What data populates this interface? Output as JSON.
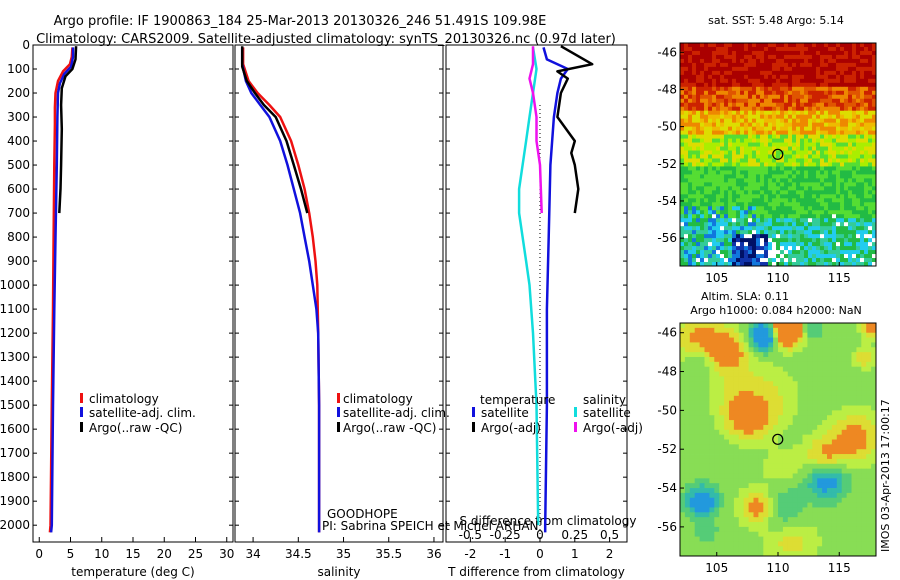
{
  "header": {
    "line1": "Argo profile: IF 1900863_184 25-Mar-2013 20130326_246 51.491S 109.98E",
    "line2": "Climatology: CARS2009. Satellite-adjusted climatology: synTS_20130326.nc (0.97d later)"
  },
  "colors": {
    "climatology": "#ee1111",
    "satellite": "#1111dd",
    "argo": "#000000",
    "sal_satellite": "#11dddd",
    "sal_argo": "#ee11ee"
  },
  "chart_data": [
    {
      "type": "line",
      "panel": "temperature",
      "xlabel": "temperature (deg C)",
      "ylabel": "",
      "xlim": [
        -1,
        31
      ],
      "ylim": [
        2070,
        0
      ],
      "xticks": [
        0,
        5,
        10,
        15,
        20,
        25,
        30
      ],
      "yticks": [
        0,
        100,
        200,
        300,
        400,
        500,
        600,
        700,
        800,
        900,
        1000,
        1100,
        1200,
        1300,
        1400,
        1500,
        1600,
        1700,
        1800,
        1900,
        2000
      ],
      "legend": [
        "climatology",
        "satellite-adj. clim.",
        "Argo(..raw -QC)"
      ],
      "series": [
        {
          "name": "climatology",
          "color": "#ee1111",
          "points": [
            [
              5.3,
              10
            ],
            [
              5.2,
              50
            ],
            [
              4.9,
              80
            ],
            [
              3.8,
              110
            ],
            [
              3.0,
              150
            ],
            [
              2.6,
              200
            ],
            [
              2.5,
              260
            ],
            [
              2.5,
              330
            ],
            [
              2.4,
              500
            ],
            [
              2.3,
              800
            ],
            [
              2.2,
              1100
            ],
            [
              2.0,
              1500
            ],
            [
              1.8,
              2000
            ],
            [
              1.7,
              2030
            ]
          ]
        },
        {
          "name": "satellite-adj. clim.",
          "color": "#1111dd",
          "points": [
            [
              5.4,
              10
            ],
            [
              5.4,
              50
            ],
            [
              5.1,
              90
            ],
            [
              4.0,
              120
            ],
            [
              3.3,
              160
            ],
            [
              3.0,
              200
            ],
            [
              2.9,
              300
            ],
            [
              2.8,
              500
            ],
            [
              2.6,
              800
            ],
            [
              2.4,
              1100
            ],
            [
              2.2,
              1500
            ],
            [
              2.0,
              2000
            ],
            [
              1.9,
              2030
            ]
          ]
        },
        {
          "name": "Argo(..raw -QC)",
          "color": "#000000",
          "points": [
            [
              5.9,
              5
            ],
            [
              5.8,
              60
            ],
            [
              5.3,
              100
            ],
            [
              4.2,
              130
            ],
            [
              3.6,
              180
            ],
            [
              3.5,
              250
            ],
            [
              3.6,
              350
            ],
            [
              3.5,
              500
            ],
            [
              3.4,
              600
            ],
            [
              3.2,
              700
            ]
          ]
        }
      ]
    },
    {
      "type": "line",
      "panel": "salinity",
      "xlabel": "salinity",
      "ylabel": "",
      "xlim": [
        33.8,
        36.1
      ],
      "ylim": [
        2070,
        0
      ],
      "xticks": [
        34,
        34.5,
        35,
        35.5,
        36
      ],
      "xticklabels": [
        "34",
        "34.5",
        "35",
        "35.5",
        "36"
      ],
      "legend": [
        "climatology",
        "satellite-adj. clim.",
        "Argo(..raw -QC)"
      ],
      "annotation": [
        "GOODHOPE",
        "PI: Sabrina SPEICH et Michel ARHAN"
      ],
      "series": [
        {
          "name": "climatology",
          "color": "#ee1111",
          "points": [
            [
              33.89,
              10
            ],
            [
              33.89,
              80
            ],
            [
              33.95,
              150
            ],
            [
              34.05,
              200
            ],
            [
              34.18,
              250
            ],
            [
              34.3,
              300
            ],
            [
              34.42,
              400
            ],
            [
              34.5,
              500
            ],
            [
              34.57,
              600
            ],
            [
              34.62,
              700
            ],
            [
              34.66,
              800
            ],
            [
              34.69,
              900
            ],
            [
              34.71,
              1000
            ],
            [
              34.72,
              1200
            ],
            [
              34.73,
              1500
            ],
            [
              34.73,
              2000
            ],
            [
              34.73,
              2030
            ]
          ]
        },
        {
          "name": "satellite-adj. clim.",
          "color": "#1111dd",
          "points": [
            [
              33.88,
              10
            ],
            [
              33.88,
              80
            ],
            [
              33.92,
              150
            ],
            [
              33.98,
              200
            ],
            [
              34.08,
              250
            ],
            [
              34.18,
              300
            ],
            [
              34.3,
              400
            ],
            [
              34.38,
              500
            ],
            [
              34.45,
              600
            ],
            [
              34.52,
              700
            ],
            [
              34.57,
              800
            ],
            [
              34.62,
              900
            ],
            [
              34.66,
              1000
            ],
            [
              34.7,
              1100
            ],
            [
              34.72,
              1200
            ],
            [
              34.73,
              1500
            ],
            [
              34.73,
              2000
            ],
            [
              34.73,
              2030
            ]
          ]
        },
        {
          "name": "Argo(..raw -QC)",
          "color": "#000000",
          "points": [
            [
              33.88,
              5
            ],
            [
              33.88,
              90
            ],
            [
              33.93,
              150
            ],
            [
              34.02,
              200
            ],
            [
              34.12,
              250
            ],
            [
              34.25,
              300
            ],
            [
              34.37,
              400
            ],
            [
              34.45,
              500
            ],
            [
              34.53,
              600
            ],
            [
              34.6,
              700
            ]
          ]
        }
      ]
    },
    {
      "type": "line",
      "panel": "difference",
      "xlabel": "T difference from climatology",
      "xlabel_top": "S difference from climatology",
      "xlim": [
        -2.7,
        2.5
      ],
      "ylim": [
        2070,
        0
      ],
      "xticks": [
        -2,
        -1,
        0,
        1,
        2
      ],
      "xticks_top": [
        "-0.5",
        "-0.25",
        "0",
        "0.25",
        "0.5"
      ],
      "legend_groups": [
        {
          "title": "temperature",
          "items": [
            "satellite",
            "Argo(-adj)"
          ]
        },
        {
          "title": "salinity",
          "items": [
            "satellite",
            "Argo(-adj)"
          ]
        }
      ],
      "series": [
        {
          "name": "temperature satellite",
          "color": "#1111dd",
          "points": [
            [
              0.1,
              10
            ],
            [
              0.2,
              60
            ],
            [
              0.8,
              100
            ],
            [
              0.6,
              140
            ],
            [
              0.5,
              200
            ],
            [
              0.4,
              300
            ],
            [
              0.3,
              500
            ],
            [
              0.25,
              800
            ],
            [
              0.2,
              1100
            ],
            [
              0.2,
              1500
            ],
            [
              0.15,
              2000
            ],
            [
              0.15,
              2030
            ]
          ]
        },
        {
          "name": "temperature Argo(-adj)",
          "color": "#000000",
          "points": [
            [
              0.6,
              5
            ],
            [
              1.5,
              80
            ],
            [
              0.5,
              110
            ],
            [
              0.8,
              140
            ],
            [
              0.6,
              200
            ],
            [
              0.5,
              300
            ],
            [
              1.0,
              400
            ],
            [
              0.9,
              450
            ],
            [
              1.0,
              500
            ],
            [
              1.1,
              600
            ],
            [
              1.0,
              700
            ]
          ]
        },
        {
          "name": "salinity satellite",
          "color": "#11dddd",
          "points": [
            [
              -0.2,
              10
            ],
            [
              -0.1,
              100
            ],
            [
              -0.2,
              200
            ],
            [
              -0.3,
              300
            ],
            [
              -0.4,
              400
            ],
            [
              -0.5,
              500
            ],
            [
              -0.6,
              600
            ],
            [
              -0.6,
              700
            ],
            [
              -0.5,
              800
            ],
            [
              -0.4,
              900
            ],
            [
              -0.3,
              1000
            ],
            [
              -0.2,
              1200
            ],
            [
              -0.1,
              1500
            ],
            [
              -0.05,
              2000
            ]
          ]
        },
        {
          "name": "salinity Argo(-adj)",
          "color": "#ee11ee",
          "points": [
            [
              -0.2,
              5
            ],
            [
              -0.2,
              80
            ],
            [
              -0.3,
              140
            ],
            [
              -0.2,
              200
            ],
            [
              -0.1,
              300
            ],
            [
              -0.1,
              400
            ],
            [
              0.0,
              500
            ],
            [
              0.05,
              700
            ]
          ]
        }
      ]
    },
    {
      "type": "heatmap",
      "panel": "sat-sst-map",
      "title": "sat. SST: 5.48 Argo: 5.14",
      "xticks": [
        105,
        110,
        115
      ],
      "yticks": [
        -46,
        -48,
        -50,
        -52,
        -54,
        -56
      ],
      "xlim": [
        102,
        118
      ],
      "ylim": [
        -57.5,
        -45.5
      ],
      "marker": {
        "lon": 109.98,
        "lat": -51.491
      }
    },
    {
      "type": "heatmap",
      "panel": "altim-sla-map",
      "title_line1": "Altim. SLA: 0.11",
      "title_line2": "Argo h1000: 0.084 h2000: NaN",
      "xticks": [
        105,
        110,
        115
      ],
      "yticks": [
        -46,
        -48,
        -50,
        -52,
        -54,
        -56
      ],
      "xlim": [
        102,
        118
      ],
      "ylim": [
        -57.5,
        -45.5
      ],
      "marker": {
        "lon": 109.98,
        "lat": -51.491
      },
      "side_label": "IMOS 03-Apr-2013 17:00:17"
    }
  ]
}
